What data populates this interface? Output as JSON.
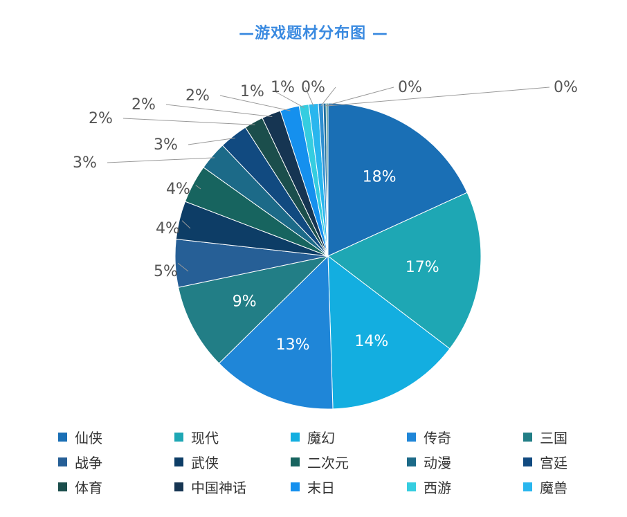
{
  "chart_data": {
    "type": "pie",
    "title": "—游戏题材分布图 —",
    "slices": [
      {
        "name": "仙侠",
        "value": 18,
        "label": "18%",
        "color": "#1a6fb5"
      },
      {
        "name": "现代",
        "value": 17,
        "label": "17%",
        "color": "#1ea7b4"
      },
      {
        "name": "魔幻",
        "value": 14,
        "label": "14%",
        "color": "#13aee0"
      },
      {
        "name": "传奇",
        "value": 13,
        "label": "13%",
        "color": "#1f86d8"
      },
      {
        "name": "三国",
        "value": 9,
        "label": "9%",
        "color": "#227e86"
      },
      {
        "name": "战争",
        "value": 5,
        "label": "5%",
        "color": "#265f96"
      },
      {
        "name": "武侠",
        "value": 4,
        "label": "4%",
        "color": "#0d3d66"
      },
      {
        "name": "二次元",
        "value": 4,
        "label": "4%",
        "color": "#17645f"
      },
      {
        "name": "动漫",
        "value": 3,
        "label": "3%",
        "color": "#1c6a88"
      },
      {
        "name": "宫廷",
        "value": 3,
        "label": "3%",
        "color": "#114a80"
      },
      {
        "name": "体育",
        "value": 2,
        "label": "2%",
        "color": "#1b4e4c"
      },
      {
        "name": "中国神话",
        "value": 2,
        "label": "2%",
        "color": "#163552"
      },
      {
        "name": "末日",
        "value": 2,
        "label": "2%",
        "color": "#1590ee"
      },
      {
        "name": "西游",
        "value": 1,
        "label": "1%",
        "color": "#35cde0"
      },
      {
        "name": "魔兽",
        "value": 1,
        "label": "1%",
        "color": "#29b6ee"
      },
      {
        "name": "",
        "value": 0.5,
        "label": "0%",
        "color": "#2f8fd0"
      },
      {
        "name": "",
        "value": 0.3,
        "label": "0%",
        "color": "#1f6f9e"
      },
      {
        "name": "",
        "value": 0.2,
        "label": "0%",
        "color": "#2a7d7a"
      }
    ],
    "legend": {
      "placement": "bottom",
      "columns": 5
    }
  }
}
